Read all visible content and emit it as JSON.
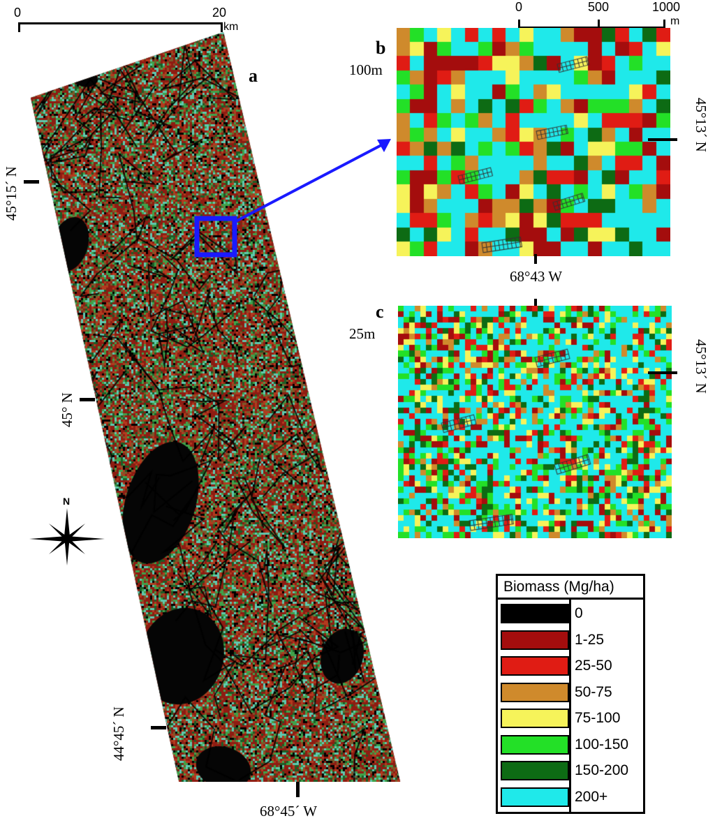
{
  "panels": {
    "a": {
      "letter": "a"
    },
    "b": {
      "letter": "b",
      "resolution": "100m"
    },
    "c": {
      "letter": "c",
      "resolution": "25m"
    }
  },
  "scale_bar_a": {
    "ticks": [
      "0",
      "20"
    ],
    "unit": "km"
  },
  "scale_bar_b": {
    "ticks": [
      "0",
      "500",
      "1000"
    ],
    "unit": "m"
  },
  "coordinates": {
    "a_lat_1": "45°15´ N",
    "a_lat_2": "45° N",
    "a_lat_3": "44°45´ N",
    "a_lon": "68°45´ W",
    "b_lat": "45°13´ N",
    "b_lon": "68°43 W",
    "c_lat": "45°13´ N"
  },
  "north_arrow": {
    "label": "N"
  },
  "legend": {
    "title": "Biomass (Mg/ha)",
    "items": [
      {
        "label": "0",
        "color": "#000000"
      },
      {
        "label": "1-25",
        "color": "#a40d0d"
      },
      {
        "label": "25-50",
        "color": "#e01c14"
      },
      {
        "label": "50-75",
        "color": "#cf8a2c"
      },
      {
        "label": "75-100",
        "color": "#f6f35a"
      },
      {
        "label": "100-150",
        "color": "#23e027"
      },
      {
        "label": "150-200",
        "color": "#0d6b14"
      },
      {
        "label": "200+",
        "color": "#1fe9ea"
      }
    ]
  }
}
